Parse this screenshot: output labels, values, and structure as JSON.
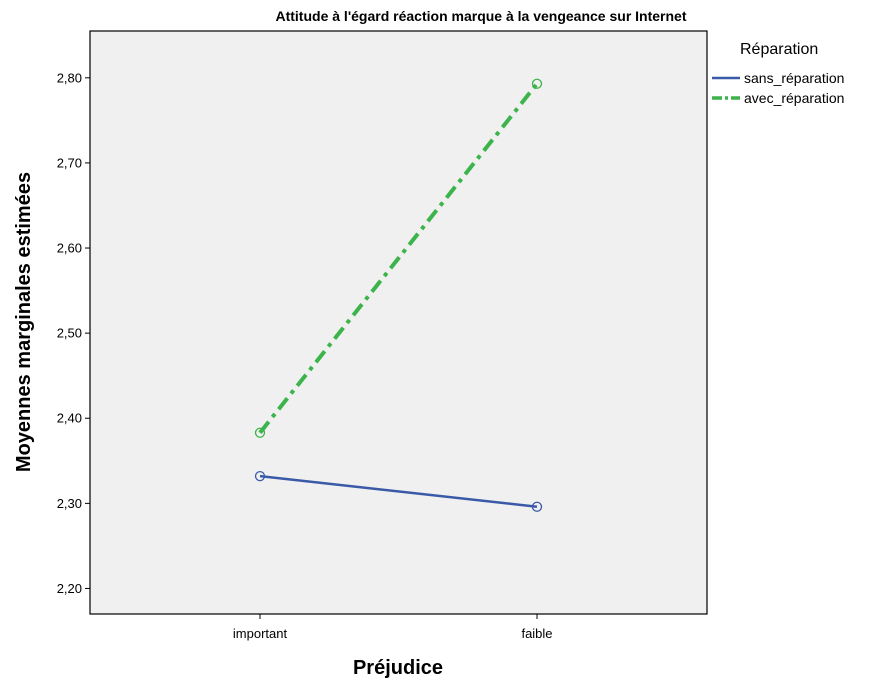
{
  "chart_data": {
    "type": "line",
    "title": "Attitude à l'égard réaction marque à la vengeance sur Internet",
    "xlabel": "Préjudice",
    "ylabel": "Moyennes marginales estimées",
    "categories": [
      "important",
      "faible"
    ],
    "ylim": [
      2.17,
      2.855
    ],
    "yticks": [
      "2,20",
      "2,30",
      "2,40",
      "2,50",
      "2,60",
      "2,70",
      "2,80"
    ],
    "ytick_values": [
      2.2,
      2.3,
      2.4,
      2.5,
      2.6,
      2.7,
      2.8
    ],
    "grid": false,
    "legend": {
      "title": "Réparation",
      "placement": "right-top"
    },
    "series": [
      {
        "name": "sans_réparation",
        "values": [
          2.332,
          2.296
        ],
        "color": "#3a5aa8",
        "dash": "solid",
        "marker": "circle"
      },
      {
        "name": "avec_réparation",
        "values": [
          2.383,
          2.793
        ],
        "color": "#3cb44b",
        "dash": "dash-dot",
        "marker": "circle"
      }
    ],
    "plot_background": "#f0f0f0"
  }
}
